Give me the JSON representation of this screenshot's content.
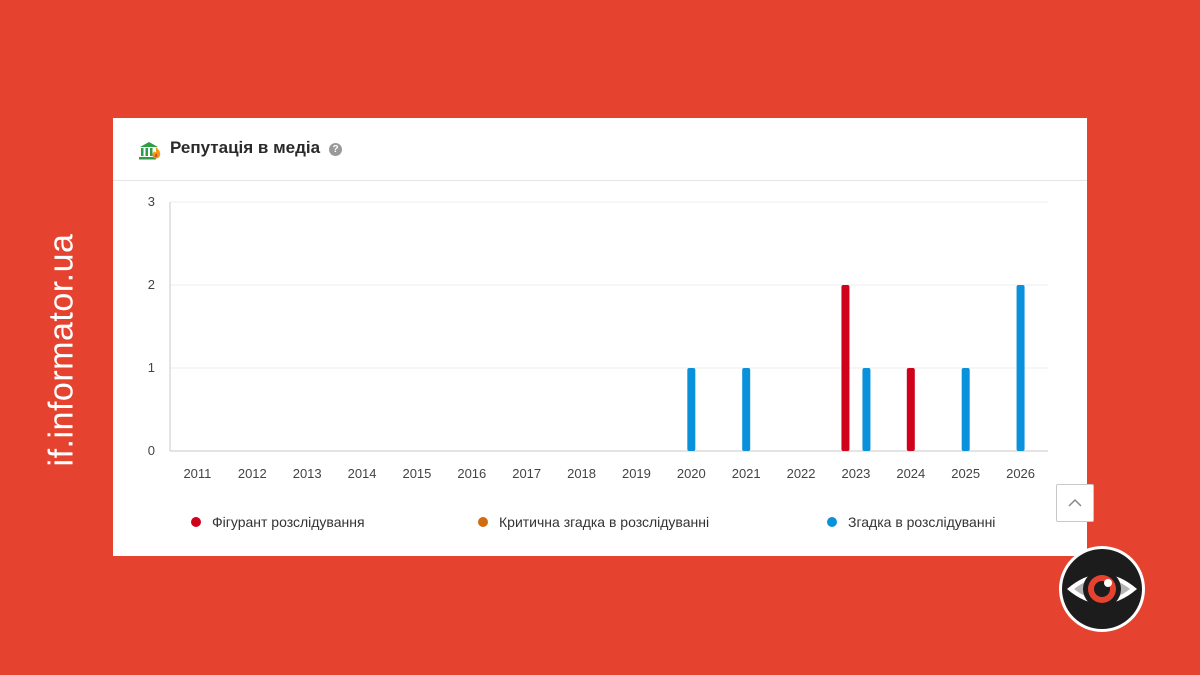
{
  "brand": {
    "side_text": "if.informator.ua"
  },
  "card": {
    "title": "Репутація в медіа",
    "help_glyph": "?",
    "icon": "reputation-media-icon"
  },
  "colors": {
    "background": "#e5432f",
    "series_red": "#d0021b",
    "series_orange": "#d26a0e",
    "series_blue": "#0a91db"
  },
  "legend": [
    {
      "label": "Фігурант розслідування",
      "color": "#d0021b"
    },
    {
      "label": "Критична згадка в розслідуванні",
      "color": "#d26a0e"
    },
    {
      "label": "Згадка в розслідуванні",
      "color": "#0a91db"
    }
  ],
  "chart_data": {
    "type": "bar",
    "title": "Репутація в медіа",
    "categories": [
      "2011",
      "2012",
      "2013",
      "2014",
      "2015",
      "2016",
      "2017",
      "2018",
      "2019",
      "2020",
      "2021",
      "2022",
      "2023",
      "2024",
      "2025",
      "2026"
    ],
    "series": [
      {
        "name": "Фігурант розслідування",
        "color": "#d0021b",
        "values": [
          0,
          0,
          0,
          0,
          0,
          0,
          0,
          0,
          0,
          0,
          0,
          0,
          2,
          1,
          0,
          0
        ]
      },
      {
        "name": "Критична згадка в розслідуванні",
        "color": "#d26a0e",
        "values": [
          0,
          0,
          0,
          0,
          0,
          0,
          0,
          0,
          0,
          0,
          0,
          0,
          0,
          0,
          0,
          0
        ]
      },
      {
        "name": "Згадка в розслідуванні",
        "color": "#0a91db",
        "values": [
          0,
          0,
          0,
          0,
          0,
          0,
          0,
          0,
          0,
          1,
          1,
          0,
          1,
          0,
          1,
          2
        ]
      }
    ],
    "ylim": [
      0,
      3
    ],
    "yticks": [
      0,
      1,
      2,
      3
    ],
    "grid": true,
    "legend_position": "bottom"
  },
  "ui": {
    "scroll_top_icon": "chevron-up-icon",
    "logo_icon": "eye-logo-icon"
  }
}
